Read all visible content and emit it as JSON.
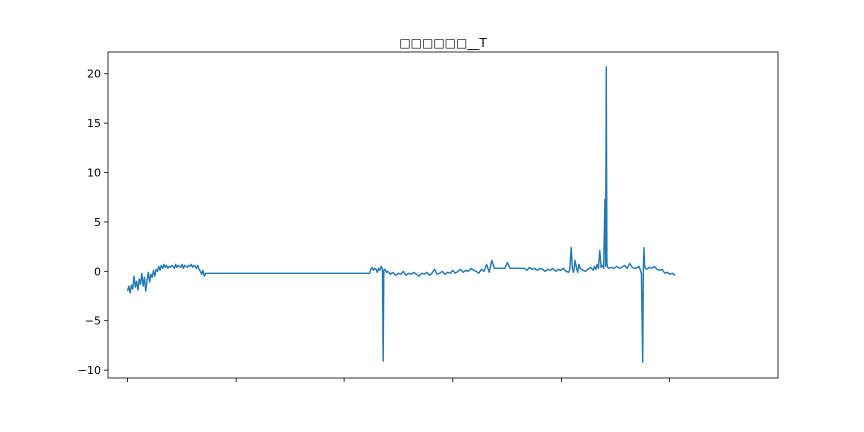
{
  "chart_data": {
    "type": "line",
    "title": "□□□□□□__T",
    "xlabel": "",
    "ylabel": "",
    "xlim": [
      -30,
      1000
    ],
    "ylim": [
      -10.8,
      22.2
    ],
    "yticks": [
      -10,
      -5,
      0,
      5,
      10,
      15,
      20
    ],
    "ytick_labels": [
      "−10",
      "−5",
      "0",
      "5",
      "10",
      "15",
      "20"
    ],
    "xticks": [
      0,
      167,
      333,
      500,
      667,
      833
    ],
    "grid": false,
    "series": [
      {
        "color": "#1f77b4",
        "points": [
          [
            0,
            -2.0
          ],
          [
            2,
            -1.5
          ],
          [
            4,
            -2.2
          ],
          [
            6,
            -1.4
          ],
          [
            8,
            -1.8
          ],
          [
            10,
            -0.5
          ],
          [
            12,
            -1.6
          ],
          [
            14,
            -1.0
          ],
          [
            16,
            -1.9
          ],
          [
            18,
            -0.8
          ],
          [
            20,
            -1.3
          ],
          [
            22,
            -0.2
          ],
          [
            24,
            -1.5
          ],
          [
            26,
            -0.6
          ],
          [
            28,
            -2.0
          ],
          [
            30,
            -0.9
          ],
          [
            32,
            -0.1
          ],
          [
            34,
            -1.1
          ],
          [
            36,
            -0.3
          ],
          [
            38,
            -0.6
          ],
          [
            40,
            0.1
          ],
          [
            42,
            -0.5
          ],
          [
            44,
            0.2
          ],
          [
            46,
            0.0
          ],
          [
            48,
            0.5
          ],
          [
            50,
            0.1
          ],
          [
            52,
            0.6
          ],
          [
            54,
            0.3
          ],
          [
            56,
            0.7
          ],
          [
            58,
            0.4
          ],
          [
            60,
            0.6
          ],
          [
            62,
            0.3
          ],
          [
            64,
            0.5
          ],
          [
            66,
            0.4
          ],
          [
            68,
            0.6
          ],
          [
            70,
            0.5
          ],
          [
            72,
            0.3
          ],
          [
            74,
            0.7
          ],
          [
            76,
            0.4
          ],
          [
            78,
            0.6
          ],
          [
            80,
            0.5
          ],
          [
            82,
            0.4
          ],
          [
            84,
            0.7
          ],
          [
            86,
            0.3
          ],
          [
            88,
            0.6
          ],
          [
            90,
            0.5
          ],
          [
            92,
            0.4
          ],
          [
            94,
            0.6
          ],
          [
            96,
            0.5
          ],
          [
            98,
            0.7
          ],
          [
            100,
            0.4
          ],
          [
            102,
            0.6
          ],
          [
            104,
            0.5
          ],
          [
            106,
            0.3
          ],
          [
            108,
            0.6
          ],
          [
            110,
            0.2
          ],
          [
            112,
            0.0
          ],
          [
            114,
            -0.3
          ],
          [
            116,
            0.1
          ],
          [
            118,
            -0.5
          ],
          [
            120,
            -0.2
          ],
          [
            372,
            -0.2
          ],
          [
            374,
            0.2
          ],
          [
            376,
            0.4
          ],
          [
            378,
            0.1
          ],
          [
            380,
            0.3
          ],
          [
            382,
            0.2
          ],
          [
            384,
            -0.1
          ],
          [
            386,
            0.3
          ],
          [
            388,
            0.1
          ],
          [
            390,
            0.5
          ],
          [
            392,
            0.2
          ],
          [
            393,
            -9.1
          ],
          [
            394,
            0.1
          ],
          [
            396,
            0.2
          ],
          [
            398,
            -0.1
          ],
          [
            400,
            0.0
          ],
          [
            404,
            -0.3
          ],
          [
            408,
            -0.1
          ],
          [
            412,
            -0.4
          ],
          [
            416,
            -0.2
          ],
          [
            420,
            -0.3
          ],
          [
            424,
            0.0
          ],
          [
            428,
            -0.4
          ],
          [
            432,
            -0.2
          ],
          [
            436,
            -0.3
          ],
          [
            440,
            -0.1
          ],
          [
            444,
            -0.3
          ],
          [
            448,
            -0.5
          ],
          [
            452,
            -0.2
          ],
          [
            456,
            -0.3
          ],
          [
            460,
            -0.1
          ],
          [
            464,
            -0.4
          ],
          [
            468,
            -0.2
          ],
          [
            472,
            0.2
          ],
          [
            476,
            -0.3
          ],
          [
            480,
            -0.2
          ],
          [
            484,
            0.0
          ],
          [
            488,
            -0.3
          ],
          [
            492,
            -0.1
          ],
          [
            496,
            -0.2
          ],
          [
            500,
            0.1
          ],
          [
            504,
            -0.2
          ],
          [
            508,
            0.0
          ],
          [
            512,
            0.2
          ],
          [
            516,
            -0.1
          ],
          [
            520,
            0.1
          ],
          [
            524,
            0.0
          ],
          [
            528,
            0.3
          ],
          [
            532,
            0.1
          ],
          [
            536,
            0.0
          ],
          [
            540,
            -0.2
          ],
          [
            544,
            0.2
          ],
          [
            548,
            0.0
          ],
          [
            552,
            0.7
          ],
          [
            556,
            -0.1
          ],
          [
            560,
            1.1
          ],
          [
            564,
            0.3
          ],
          [
            580,
            0.3
          ],
          [
            584,
            0.9
          ],
          [
            588,
            0.3
          ],
          [
            610,
            0.3
          ],
          [
            614,
            0.1
          ],
          [
            618,
            0.4
          ],
          [
            622,
            0.2
          ],
          [
            626,
            0.3
          ],
          [
            630,
            0.1
          ],
          [
            634,
            0.3
          ],
          [
            638,
            0.2
          ],
          [
            642,
            0.0
          ],
          [
            646,
            0.2
          ],
          [
            650,
            0.1
          ],
          [
            654,
            0.3
          ],
          [
            658,
            0.0
          ],
          [
            662,
            0.2
          ],
          [
            666,
            0.1
          ],
          [
            670,
            0.3
          ],
          [
            674,
            0.0
          ],
          [
            678,
            -0.1
          ],
          [
            680,
            0.2
          ],
          [
            682,
            2.4
          ],
          [
            684,
            0.2
          ],
          [
            686,
            -0.1
          ],
          [
            688,
            1.1
          ],
          [
            690,
            0.4
          ],
          [
            692,
            -0.1
          ],
          [
            694,
            0.7
          ],
          [
            696,
            0.3
          ],
          [
            700,
            0.1
          ],
          [
            704,
            0.0
          ],
          [
            708,
            0.2
          ],
          [
            712,
            0.4
          ],
          [
            716,
            0.1
          ],
          [
            718,
            0.5
          ],
          [
            720,
            0.2
          ],
          [
            722,
            0.7
          ],
          [
            724,
            0.3
          ],
          [
            726,
            2.1
          ],
          [
            728,
            0.4
          ],
          [
            730,
            0.6
          ],
          [
            732,
            0.3
          ],
          [
            734,
            7.3
          ],
          [
            735,
            0.5
          ],
          [
            736,
            20.7
          ],
          [
            737,
            0.8
          ],
          [
            738,
            0.4
          ],
          [
            740,
            0.3
          ],
          [
            744,
            0.4
          ],
          [
            748,
            0.3
          ],
          [
            752,
            0.5
          ],
          [
            756,
            0.3
          ],
          [
            760,
            0.4
          ],
          [
            764,
            0.6
          ],
          [
            768,
            0.3
          ],
          [
            772,
            0.8
          ],
          [
            776,
            0.4
          ],
          [
            780,
            0.3
          ],
          [
            784,
            0.4
          ],
          [
            786,
            0.5
          ],
          [
            788,
            0.2
          ],
          [
            790,
            -0.2
          ],
          [
            792,
            -9.2
          ],
          [
            793,
            0.3
          ],
          [
            794,
            2.4
          ],
          [
            795,
            0.4
          ],
          [
            798,
            0.2
          ],
          [
            802,
            0.4
          ],
          [
            806,
            0.3
          ],
          [
            810,
            0.5
          ],
          [
            814,
            0.2
          ],
          [
            818,
            0.1
          ],
          [
            822,
            0.2
          ],
          [
            826,
            -0.2
          ],
          [
            830,
            -0.1
          ],
          [
            834,
            -0.3
          ],
          [
            838,
            -0.2
          ],
          [
            842,
            -0.4
          ]
        ]
      }
    ]
  }
}
